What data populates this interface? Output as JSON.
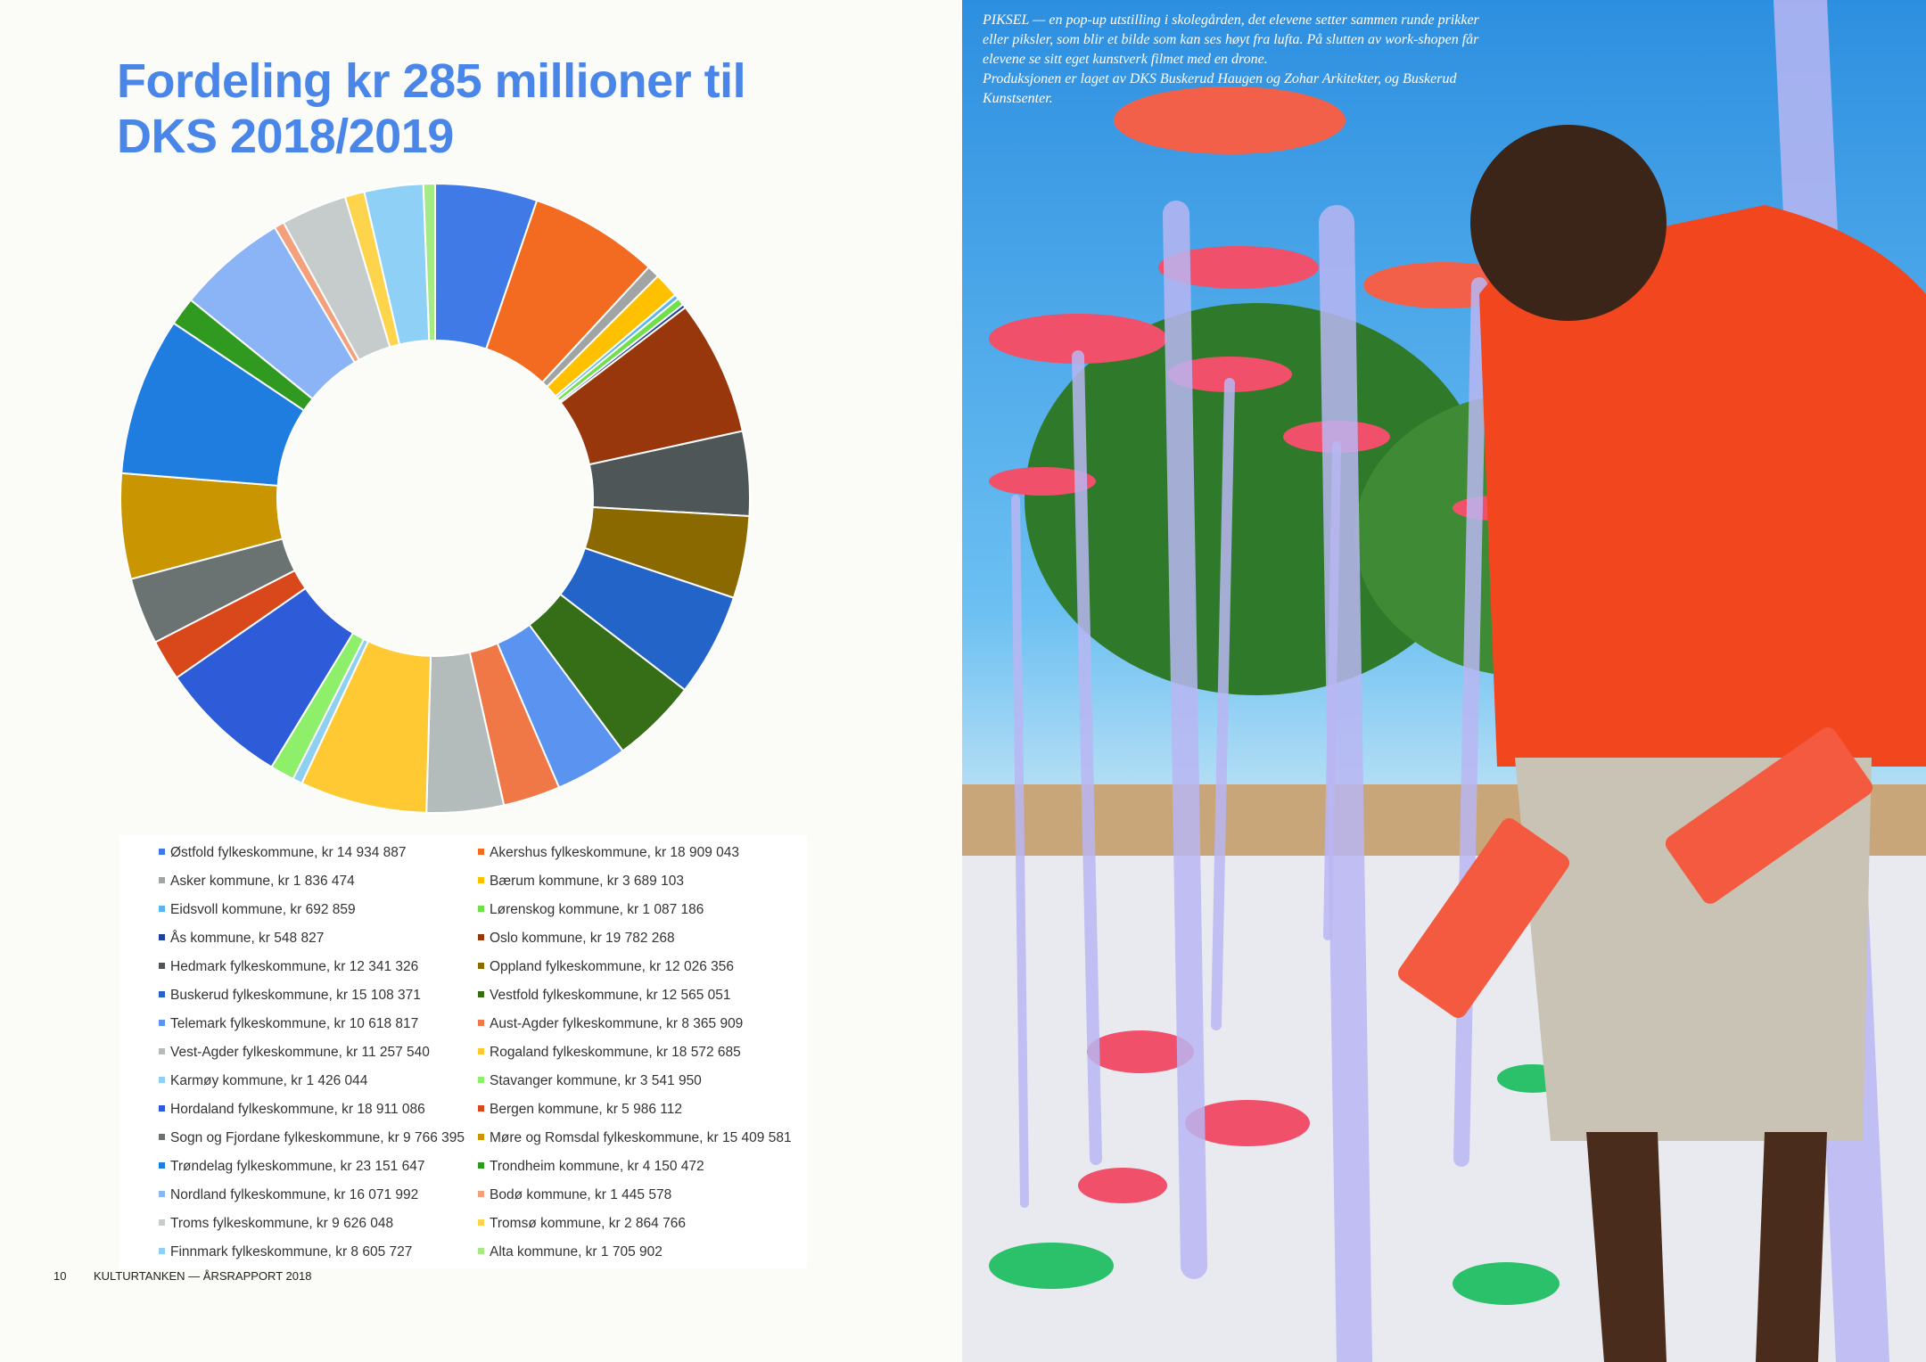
{
  "chart_data": {
    "type": "donut",
    "title": "Fordeling kr 285 millioner til DKS 2018/2019",
    "categories": [
      "Østfold fylkeskommune,  kr 14 934 887",
      "Akershus fylkeskommune, kr 18 909 043",
      "Asker kommune, kr 1 836 474",
      "Bærum kommune, kr 3 689 103",
      "Eidsvoll kommune, kr 692 859",
      "Lørenskog kommune, kr 1 087 186",
      "Ås kommune, kr 548 827",
      "Oslo kommune, kr 19 782 268",
      "Hedmark fylkeskommune, kr 12 341 326",
      "Oppland fylkeskommune, kr 12 026 356",
      "Buskerud fylkeskommune, kr 15 108 371",
      "Vestfold fylkeskommune, kr 12 565 051",
      "Telemark fylkeskommune, kr 10 618 817",
      "Aust-Agder fylkeskommune, kr 8 365 909",
      "Vest-Agder fylkeskommune, kr 11 257 540",
      "Rogaland fylkeskommune, kr 18 572 685",
      "Karmøy kommune, kr 1 426 044",
      "Stavanger kommune, kr 3 541 950",
      "Hordaland fylkeskommune, kr 18 911 086",
      "Bergen kommune, kr 5 986 112",
      "Sogn og Fjordane fylkeskommune, kr 9 766 395",
      "Møre og Romsdal fylkeskommune, kr 15 409 581",
      "Trøndelag fylkeskommune, kr 23 151 647",
      "Trondheim kommune, kr 4 150 472",
      "Nordland fylkeskommune, kr 16 071 992",
      "Bodø kommune, kr 1 445 578",
      "Troms fylkeskommune, kr 9 626 048",
      "Tromsø kommune, kr 2 864 766",
      "Finnmark fylkeskommune, kr 8 605 727",
      "Alta kommune, kr 1 705 902"
    ],
    "values": [
      14934887,
      18909043,
      1836474,
      3689103,
      692859,
      1087186,
      548827,
      19782268,
      12341326,
      12026356,
      15108371,
      12565051,
      10618817,
      8365909,
      11257540,
      18572685,
      1426044,
      3541950,
      18911086,
      5986112,
      9766395,
      15409581,
      23151647,
      4150472,
      16071992,
      1445578,
      9626048,
      2864766,
      8605727,
      1705902
    ],
    "colors": [
      "#3f7ae6",
      "#f26b21",
      "#a0a4a4",
      "#ffc000",
      "#5ab4ef",
      "#6fe04a",
      "#1f3f9c",
      "#98360c",
      "#4f5657",
      "#8a6a00",
      "#2364c8",
      "#356e16",
      "#5b93f0",
      "#f07846",
      "#b4bcbb",
      "#ffc933",
      "#8fcff2",
      "#8ef06a",
      "#2e5bd8",
      "#d8481a",
      "#6b7272",
      "#c99500",
      "#1f7de0",
      "#2f9a1f",
      "#8ab4f5",
      "#f3a17c",
      "#c6cbcb",
      "#ffd44d",
      "#8fd0f7",
      "#a5eb85"
    ]
  },
  "photo_caption": [
    "PIKSEL — en pop-up utstilling i skolegården, det elevene setter sammen runde prikker eller piksler, som blir et bilde som kan ses høyt fra lufta. På slutten av work-shopen får elevene se sitt eget kunstverk filmet med en drone.",
    "Produksjonen er laget av DKS Buskerud Haugen og Zohar Arkitekter, og Buskerud Kunstsenter."
  ],
  "footer": {
    "page_number": "10",
    "publication": "KULTURTANKEN — ÅRSRAPPORT 2018"
  }
}
